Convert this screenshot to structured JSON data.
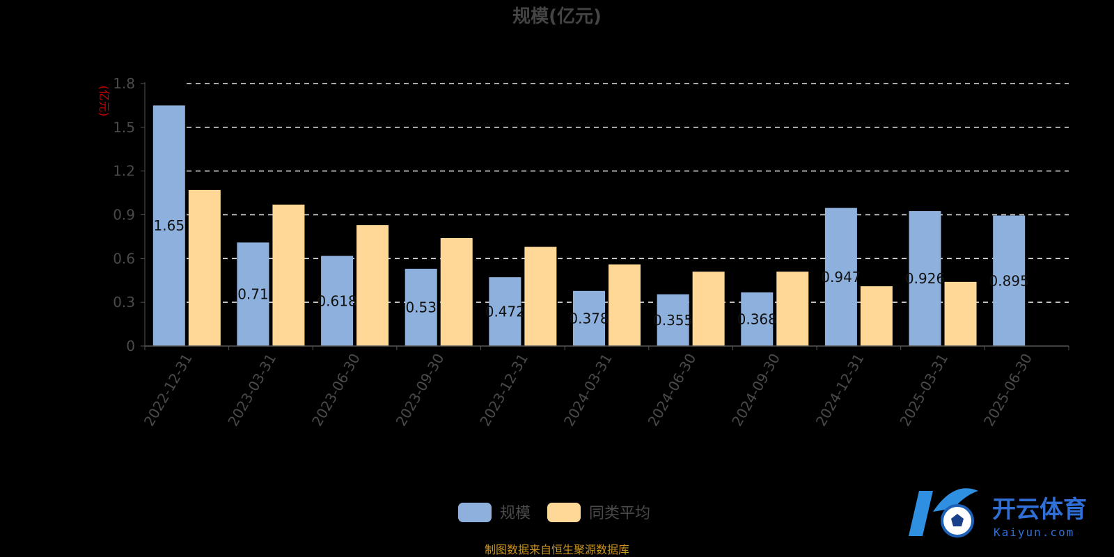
{
  "chart_data": {
    "type": "bar",
    "title": "规模(亿元)",
    "ylabel": "(亿元)",
    "xlabel": "",
    "ylim": [
      0,
      1.8
    ],
    "yticks": [
      "0",
      "0.3",
      "0.6",
      "0.9",
      "1.2",
      "1.5",
      "1.8"
    ],
    "grid": "horizontal dashed",
    "legend_position": "bottom",
    "categories": [
      "2022-12-31",
      "2023-03-31",
      "2023-06-30",
      "2023-09-30",
      "2023-12-31",
      "2024-03-31",
      "2024-06-30",
      "2024-09-30",
      "2024-12-31",
      "2025-03-31",
      "2025-06-30"
    ],
    "series": [
      {
        "name": "规模",
        "color": "#8eb0dc",
        "values": [
          1.65,
          0.71,
          0.618,
          0.53,
          0.472,
          0.378,
          0.355,
          0.368,
          0.947,
          0.926,
          0.895
        ],
        "labels": [
          "1.65",
          "0.71",
          "0.618",
          "0.53",
          "0.472",
          "0.378",
          "0.355",
          "0.368",
          "0.947",
          "0.926",
          "0.895"
        ]
      },
      {
        "name": "同类平均",
        "color": "#ffd898",
        "values": [
          1.07,
          0.97,
          0.83,
          0.74,
          0.68,
          0.56,
          0.51,
          0.51,
          0.41,
          0.44,
          null
        ]
      }
    ]
  },
  "source_note": "制图数据来自恒生聚源数据库",
  "watermark": {
    "text": "开云体育",
    "subtext": "Kaiyun.com"
  }
}
